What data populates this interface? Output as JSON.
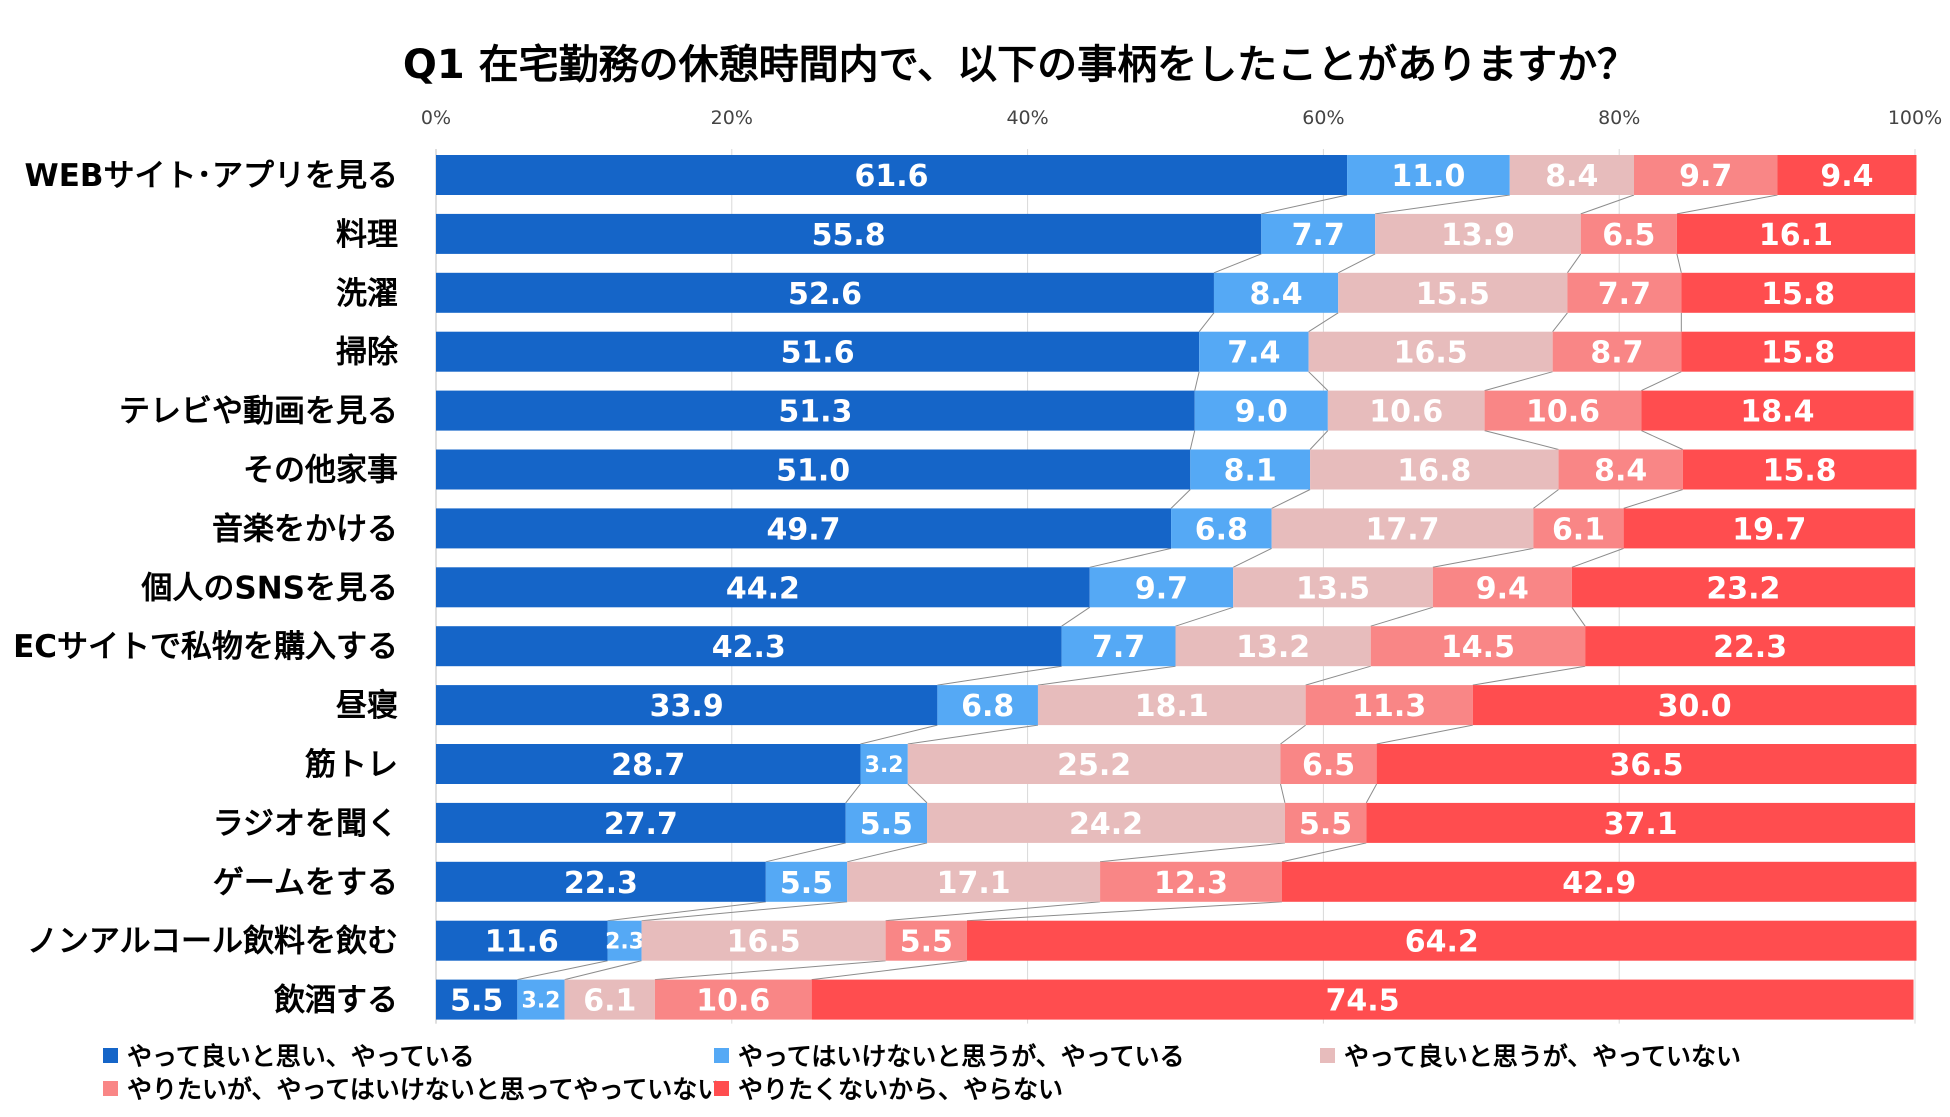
{
  "chart_data": {
    "type": "bar",
    "orientation": "horizontal-stacked-percent",
    "title": "Q1 在宅勤務の休憩時間内で、以下の事柄をしたことがありますか？",
    "xlim": [
      0,
      100
    ],
    "xticks": [
      "0%",
      "20%",
      "40%",
      "60%",
      "80%",
      "100%"
    ],
    "xtick_values": [
      0,
      20,
      40,
      60,
      80,
      100
    ],
    "categories": [
      "WEBサイト･アプリを見る",
      "料理",
      "洗濯",
      "掃除",
      "テレビや動画を見る",
      "その他家事",
      "音楽をかける",
      "個人のSNSを見る",
      "ECサイトで私物を購入する",
      "昼寝",
      "筋トレ",
      "ラジオを聞く",
      "ゲームをする",
      "ノンアルコール飲料を飲む",
      "飲酒する"
    ],
    "series": [
      {
        "name": "やって良いと思い、やっている",
        "color": "#1565C8",
        "values": [
          "61.6",
          "55.8",
          "52.6",
          "51.6",
          "51.3",
          "51.0",
          "49.7",
          "44.2",
          "42.3",
          "33.9",
          "28.7",
          "27.7",
          "22.3",
          "11.6",
          "5.5"
        ]
      },
      {
        "name": "やってはいけないと思うが、やっている",
        "color": "#55A9F5",
        "values": [
          "11.0",
          "7.7",
          "8.4",
          "7.4",
          "9.0",
          "8.1",
          "6.8",
          "9.7",
          "7.7",
          "6.8",
          "3.2",
          "5.5",
          "5.5",
          "2.3",
          "3.2"
        ]
      },
      {
        "name": "やって良いと思うが、やっていない",
        "color": "#E7BCBC",
        "values": [
          "8.4",
          "13.9",
          "15.5",
          "16.5",
          "10.6",
          "16.8",
          "17.7",
          "13.5",
          "13.2",
          "18.1",
          "25.2",
          "24.2",
          "17.1",
          "16.5",
          "6.1"
        ]
      },
      {
        "name": "やりたいが、やってはいけないと思ってやっていない",
        "color": "#F98686",
        "values": [
          "9.7",
          "6.5",
          "7.7",
          "8.7",
          "10.6",
          "8.4",
          "6.1",
          "9.4",
          "14.5",
          "11.3",
          "6.5",
          "5.5",
          "12.3",
          "5.5",
          "10.6"
        ]
      },
      {
        "name": "やりたくないから、やらない",
        "color": "#FF4D4F",
        "values": [
          "9.4",
          "16.1",
          "15.8",
          "15.8",
          "18.4",
          "15.8",
          "19.7",
          "23.2",
          "22.3",
          "30.0",
          "36.5",
          "37.1",
          "42.9",
          "64.2",
          "74.5"
        ]
      }
    ],
    "legend_position": "bottom",
    "grid": true
  }
}
